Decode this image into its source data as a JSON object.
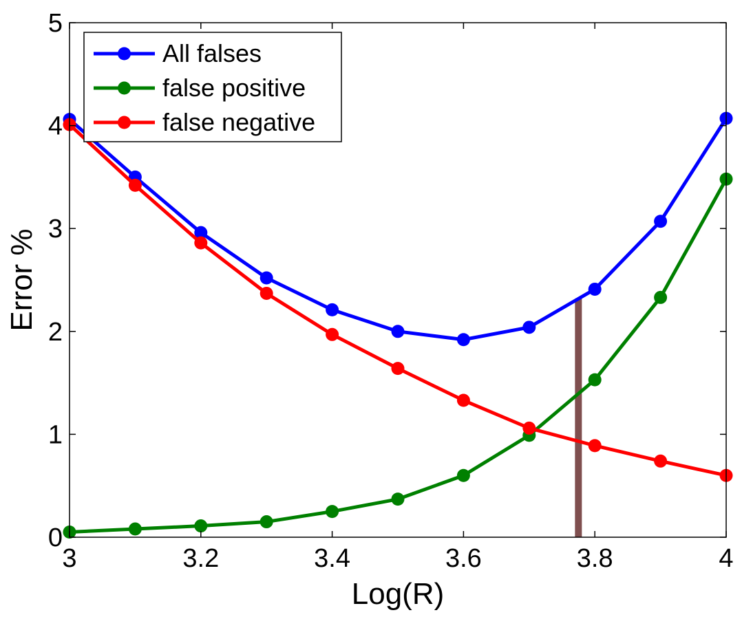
{
  "chart_data": {
    "type": "line",
    "x": [
      3.0,
      3.1,
      3.2,
      3.3,
      3.4,
      3.5,
      3.6,
      3.7,
      3.8,
      3.9,
      4.0
    ],
    "series": [
      {
        "name": "All falses",
        "color": "#0000ff",
        "values": [
          4.06,
          3.5,
          2.96,
          2.52,
          2.21,
          2.0,
          1.92,
          2.04,
          2.41,
          3.07,
          4.07
        ]
      },
      {
        "name": "false positive",
        "color": "#008000",
        "values": [
          0.05,
          0.08,
          0.11,
          0.15,
          0.25,
          0.37,
          0.6,
          0.99,
          1.53,
          2.33,
          3.48
        ]
      },
      {
        "name": "false negative",
        "color": "#ff0000",
        "values": [
          4.01,
          3.42,
          2.86,
          2.37,
          1.97,
          1.64,
          1.33,
          1.06,
          0.89,
          0.74,
          0.6
        ]
      }
    ],
    "marker_line": {
      "x": 3.775,
      "y_top": 2.32,
      "color": "#7f4f4f"
    },
    "xlabel": "Log(R)",
    "ylabel": "Error %",
    "xlim": [
      3.0,
      4.0
    ],
    "ylim": [
      0,
      5
    ],
    "xticks": [
      3.0,
      3.2,
      3.4,
      3.6,
      3.8,
      4.0
    ],
    "xtick_labels": [
      "3",
      "3.2",
      "3.4",
      "3.6",
      "3.8",
      "4"
    ],
    "yticks": [
      0,
      1,
      2,
      3,
      4,
      5
    ],
    "ytick_labels": [
      "0",
      "1",
      "2",
      "3",
      "4",
      "5"
    ],
    "grid": false,
    "legend_position": "top-left"
  }
}
